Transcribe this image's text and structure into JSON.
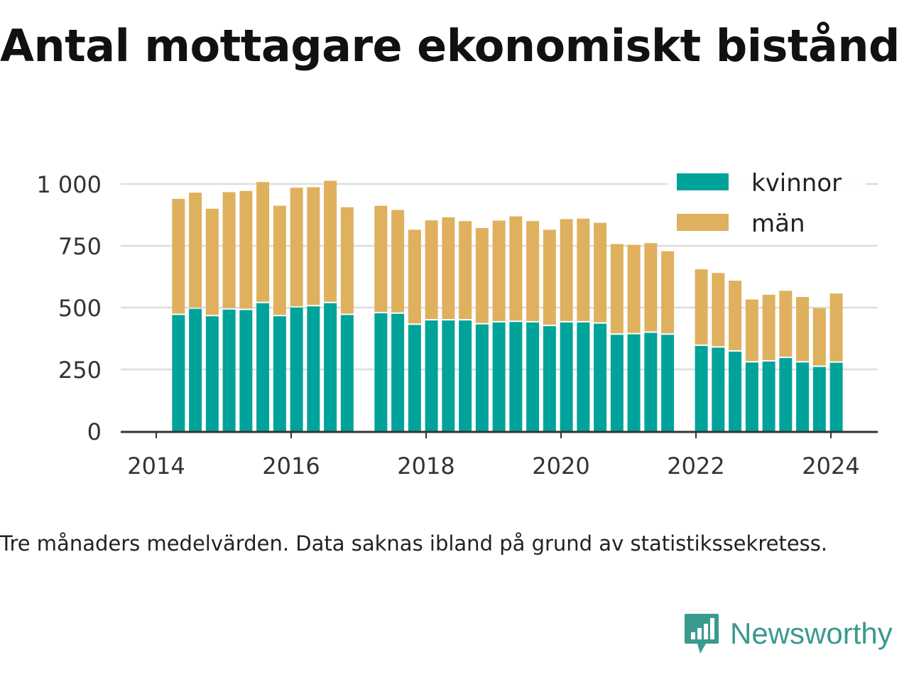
{
  "title": "Antal mottagare ekonomiskt bistånd",
  "caption": "Tre månaders medelvärden. Data saknas ibland på grund av statistikssekretess.",
  "logo": {
    "text": "Newsworthy",
    "icon": "newsworthy-bar-chart-icon"
  },
  "colors": {
    "kvinnor": "#00a39a",
    "man": "#dfb05e",
    "grid": "#dddddd",
    "axis": "#333333"
  },
  "chart_data": {
    "type": "bar",
    "stacked": true,
    "x_ticks": [
      "2014",
      "2016",
      "2018",
      "2020",
      "2022",
      "2024"
    ],
    "y_ticks": [
      "0",
      "250",
      "500",
      "750",
      "1 000"
    ],
    "ylim": [
      0,
      1050
    ],
    "grid": true,
    "legend_position": "top-right",
    "legend": [
      "kvinnor",
      "män"
    ],
    "x": [
      2014.33,
      2014.58,
      2014.83,
      2015.08,
      2015.33,
      2015.58,
      2015.83,
      2016.08,
      2016.33,
      2016.58,
      2016.83,
      2017.33,
      2017.58,
      2017.83,
      2018.08,
      2018.33,
      2018.58,
      2018.83,
      2019.08,
      2019.33,
      2019.58,
      2019.83,
      2020.08,
      2020.33,
      2020.58,
      2020.83,
      2021.08,
      2021.33,
      2021.58,
      2022.08,
      2022.33,
      2022.58,
      2022.83,
      2023.08,
      2023.33,
      2023.58,
      2023.83,
      2024.08
    ],
    "series": [
      {
        "name": "kvinnor",
        "values": [
          470,
          495,
          465,
          492,
          490,
          518,
          465,
          500,
          505,
          518,
          470,
          477,
          475,
          430,
          448,
          448,
          448,
          432,
          440,
          442,
          440,
          425,
          440,
          440,
          435,
          390,
          392,
          398,
          390,
          345,
          338,
          322,
          278,
          282,
          296,
          278,
          260,
          277
        ]
      },
      {
        "name": "män",
        "values": [
          470,
          470,
          435,
          475,
          482,
          490,
          447,
          485,
          482,
          495,
          436,
          435,
          420,
          385,
          405,
          417,
          402,
          390,
          412,
          427,
          410,
          390,
          418,
          420,
          408,
          367,
          362,
          363,
          338,
          310,
          302,
          287,
          255,
          270,
          272,
          265,
          238,
          280
        ]
      }
    ]
  }
}
